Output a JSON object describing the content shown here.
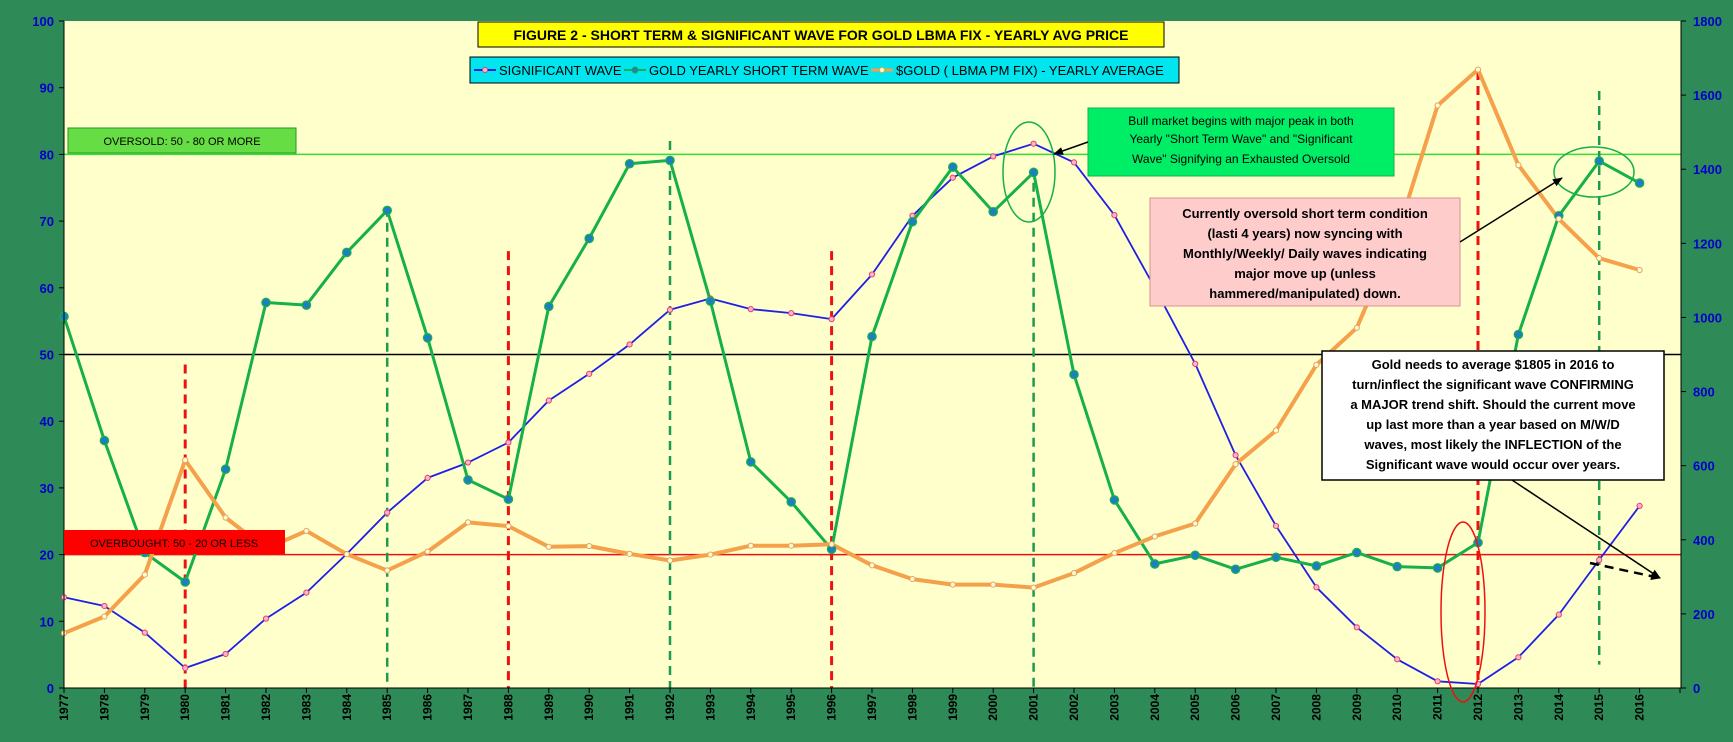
{
  "chart_data": {
    "type": "line",
    "title": "FIGURE 2 - SHORT TERM & SIGNIFICANT WAVE FOR GOLD LBMA FIX - YEARLY AVG PRICE",
    "categories": [
      "1977",
      "1978",
      "1979",
      "1980",
      "1981",
      "1982",
      "1983",
      "1984",
      "1985",
      "1986",
      "1987",
      "1988",
      "1989",
      "1990",
      "1991",
      "1992",
      "1993",
      "1994",
      "1995",
      "1996",
      "1997",
      "1998",
      "1999",
      "2000",
      "2001",
      "2002",
      "2003",
      "2004",
      "2005",
      "2006",
      "2007",
      "2008",
      "2009",
      "2010",
      "2011",
      "2012",
      "2013",
      "2014",
      "2015",
      "2016"
    ],
    "y_left": {
      "range": [
        0,
        100
      ],
      "ticks": [
        "0",
        "10",
        "20",
        "30",
        "40",
        "50",
        "60",
        "70",
        "80",
        "90",
        "100"
      ]
    },
    "y_right": {
      "range": [
        0,
        1800
      ],
      "ticks": [
        "0",
        "200",
        "400",
        "600",
        "800",
        "1000",
        "1200",
        "1400",
        "1600",
        "1800"
      ]
    },
    "series": [
      {
        "name": "SIGNIFICANT WAVE",
        "axis": "left",
        "color": "#1f1fe6",
        "values": [
          13.6,
          12.3,
          8.3,
          3.0,
          5.1,
          10.4,
          14.3,
          20.1,
          26.3,
          31.5,
          33.8,
          36.8,
          43.1,
          47.1,
          51.5,
          56.7,
          58.4,
          56.8,
          56.2,
          55.3,
          62.0,
          70.8,
          76.5,
          79.7,
          81.6,
          78.8,
          70.9,
          60.0,
          48.6,
          34.9,
          24.3,
          15.1,
          9.1,
          4.3,
          1.0,
          0.6,
          4.6,
          11.0,
          19.2,
          27.3
        ]
      },
      {
        "name": "GOLD YEARLY  SHORT TERM WAVE",
        "axis": "left",
        "color": "#16b04a",
        "values": [
          55.7,
          37.1,
          20.3,
          15.9,
          32.8,
          57.8,
          57.4,
          65.3,
          71.6,
          52.5,
          31.2,
          28.3,
          57.2,
          67.4,
          78.6,
          79.1,
          58.0,
          33.9,
          27.9,
          20.8,
          52.7,
          69.9,
          78.1,
          71.4,
          77.3,
          47.0,
          28.2,
          18.6,
          19.9,
          17.8,
          19.6,
          18.3,
          20.3,
          18.2,
          18.0,
          21.8,
          53.0,
          70.8,
          79.0,
          75.7
        ]
      },
      {
        "name": "$GOLD ( LBMA PM FIX) - YEARLY AVERAGE",
        "axis": "right",
        "color": "#f5a04a",
        "values": [
          148,
          193,
          306,
          615,
          460,
          376,
          424,
          361,
          317,
          368,
          447,
          437,
          381,
          383,
          362,
          344,
          360,
          384,
          384,
          388,
          331,
          294,
          279,
          279,
          271,
          310,
          364,
          409,
          444,
          604,
          695,
          872,
          972,
          1225,
          1572,
          1669,
          1411,
          1266,
          1160,
          1128
        ]
      }
    ],
    "reference_lines": [
      {
        "y": 80,
        "axis": "left",
        "color": "#33dd33"
      },
      {
        "y": 50,
        "axis": "left",
        "color": "#000000"
      },
      {
        "y": 20,
        "axis": "left",
        "color": "#ee1111"
      }
    ],
    "red_dashed_years": [
      "1980",
      "1988",
      "1996",
      "2012"
    ],
    "green_dashed_years": [
      "1985",
      "1992",
      "2001",
      "2015"
    ],
    "legend_placement": "top-center",
    "grid": false
  },
  "legend": {
    "significant_wave": "SIGNIFICANT WAVE",
    "short_term_wave": "GOLD YEARLY  SHORT TERM WAVE",
    "gold_price": "$GOLD ( LBMA PM FIX) - YEARLY AVERAGE"
  },
  "labels": {
    "oversold": "OVERSOLD: 50 - 80 OR MORE",
    "overbought": "OVERBOUGHT: 50 - 20 OR LESS"
  },
  "annotations": {
    "bull_market": [
      "Bull market begins with  major peak in both",
      "Yearly \"Short Term Wave\" and \"Significant",
      "Wave\" Signifying an Exhausted Oversold"
    ],
    "currently_oversold": [
      "Currently oversold short term condition",
      "(lasti 4 years) now syncing with",
      "Monthly/Weekly/ Daily waves  indicating",
      "major move up (unless",
      "hammered/manipulated) down."
    ],
    "gold_needs": [
      "Gold needs to average $1805  in 2016 to",
      "turn/inflect the significant wave CONFIRMING",
      "a MAJOR trend shift. Should the current move",
      "up  last more than a year based on M/W/D",
      "waves, most likely the INFLECTION of the",
      "Significant wave would occur over years."
    ]
  },
  "colors": {
    "background": "#2e8b57",
    "plot_area": "#ffffcc",
    "title_box": "#ffff00",
    "legend_box": "#00e5ee",
    "oversold_box": "#66dd44",
    "overbought_box": "#ff0000",
    "bull_box": "#00ee66",
    "pink_box": "#ffcccc"
  }
}
